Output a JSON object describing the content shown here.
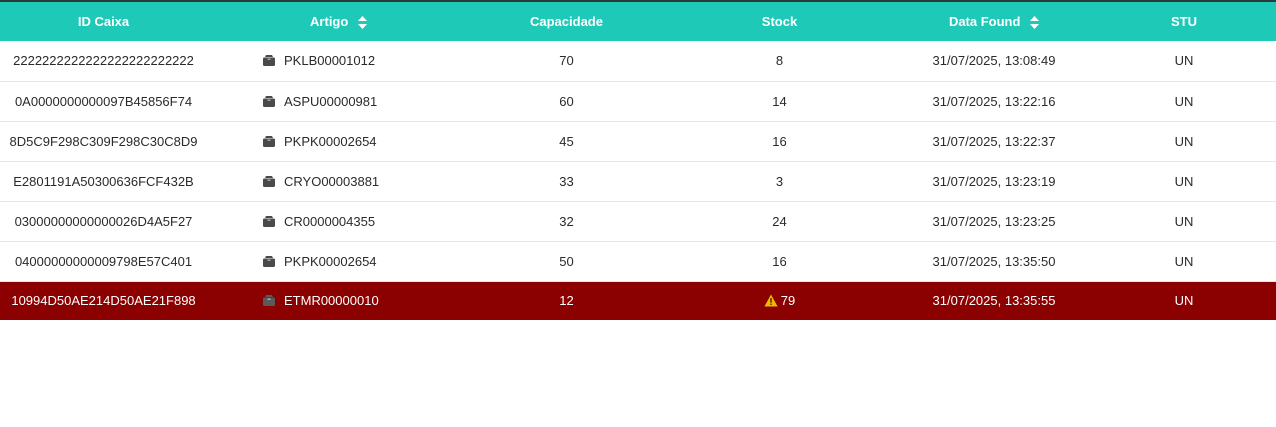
{
  "table": {
    "headers": {
      "id_caixa": "ID Caixa",
      "artigo": "Artigo",
      "capacidade": "Capacidade",
      "stock": "Stock",
      "data_found": "Data Found",
      "stu": "STU"
    },
    "rows": [
      {
        "id_caixa": "2222222222222222222222222",
        "artigo": "PKLB00001012",
        "capacidade": "70",
        "stock": "8",
        "data_found": "31/07/2025, 13:08:49",
        "stu": "UN",
        "alert": false
      },
      {
        "id_caixa": "0A0000000000097B45856F74",
        "artigo": "ASPU00000981",
        "capacidade": "60",
        "stock": "14",
        "data_found": "31/07/2025, 13:22:16",
        "stu": "UN",
        "alert": false
      },
      {
        "id_caixa": "8D5C9F298C309F298C30C8D9",
        "artigo": "PKPK00002654",
        "capacidade": "45",
        "stock": "16",
        "data_found": "31/07/2025, 13:22:37",
        "stu": "UN",
        "alert": false
      },
      {
        "id_caixa": "E2801191A50300636FCF432B",
        "artigo": "CRYO00003881",
        "capacidade": "33",
        "stock": "3",
        "data_found": "31/07/2025, 13:23:19",
        "stu": "UN",
        "alert": false
      },
      {
        "id_caixa": "03000000000000026D4A5F27",
        "artigo": "CR0000004355",
        "capacidade": "32",
        "stock": "24",
        "data_found": "31/07/2025, 13:23:25",
        "stu": "UN",
        "alert": false
      },
      {
        "id_caixa": "04000000000009798E57C401",
        "artigo": "PKPK00002654",
        "capacidade": "50",
        "stock": "16",
        "data_found": "31/07/2025, 13:35:50",
        "stu": "UN",
        "alert": false
      },
      {
        "id_caixa": "10994D50AE214D50AE21F898",
        "artigo": "ETMR00000010",
        "capacidade": "12",
        "stock": "79",
        "data_found": "31/07/2025, 13:35:55",
        "stu": "UN",
        "alert": true
      }
    ]
  },
  "icons": {
    "row_item_icon": "box-icon",
    "sort_icon": "sort-icon",
    "alert_icon": "warning-icon"
  },
  "colors": {
    "header_bg": "#1fc9b8",
    "alert_row_bg": "#8b0000",
    "warning_icon": "#f5b400"
  }
}
